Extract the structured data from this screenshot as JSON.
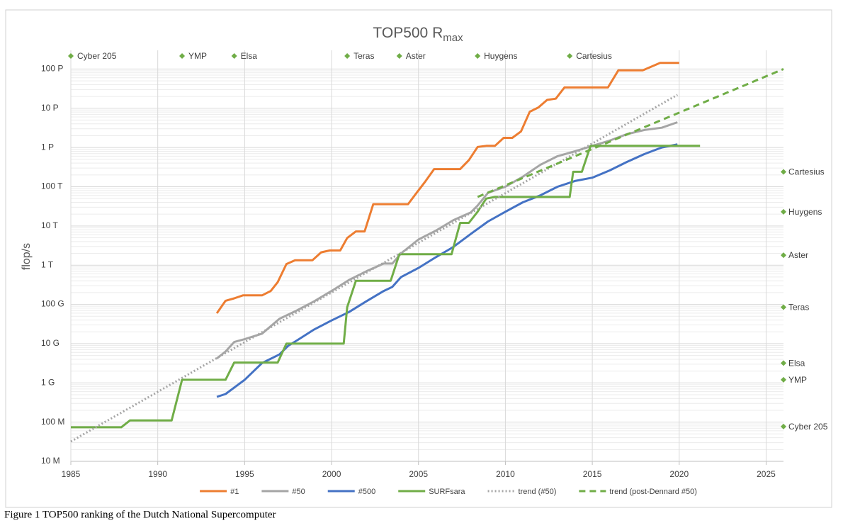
{
  "chart_data": {
    "type": "line",
    "title": "TOP500 R",
    "title_subscript": "max",
    "y_label": "flop/s",
    "caption": "Figure 1 TOP500 ranking of the Dutch National Supercomputer",
    "y_log": true,
    "grid": true,
    "legend": "bottom",
    "xlim": [
      1985,
      2026
    ],
    "xticks": [
      1985,
      1990,
      1995,
      2000,
      2005,
      2010,
      2015,
      2020,
      2025
    ],
    "ylim": [
      10000000.0,
      3e+17
    ],
    "yticks": [
      {
        "value": 10000000.0,
        "label": "10 M"
      },
      {
        "value": 100000000.0,
        "label": "100 M"
      },
      {
        "value": 1000000000.0,
        "label": "1 G"
      },
      {
        "value": 10000000000.0,
        "label": "10 G"
      },
      {
        "value": 100000000000.0,
        "label": "100 G"
      },
      {
        "value": 1000000000000.0,
        "label": "1 T"
      },
      {
        "value": 10000000000000.0,
        "label": "10 T"
      },
      {
        "value": 100000000000000.0,
        "label": "100 T"
      },
      {
        "value": 1000000000000000.0,
        "label": "1 P"
      },
      {
        "value": 1e+16,
        "label": "10 P"
      },
      {
        "value": 1e+17,
        "label": "100  P"
      }
    ],
    "series": [
      {
        "name": "#1",
        "color": "#ed7d31",
        "style": "solid",
        "x": [
          1993.4,
          1993.9,
          1994.4,
          1994.9,
          1996.0,
          1996.5,
          1996.9,
          1997.4,
          1997.9,
          1998.9,
          1999.4,
          1999.9,
          2000.5,
          2000.9,
          2001.4,
          2001.9,
          2002.4,
          2004.4,
          2004.9,
          2005.4,
          2005.9,
          2007.4,
          2007.9,
          2008.4,
          2008.9,
          2009.4,
          2009.9,
          2010.4,
          2010.9,
          2011.4,
          2011.9,
          2012.4,
          2012.9,
          2013.4,
          2014.9,
          2015.9,
          2016.5,
          2017.9,
          2018.9,
          2020.0
        ],
        "values": [
          59700000000.0,
          124000000000.0,
          143000000000.0,
          170000000000.0,
          170000000000.0,
          220000000000.0,
          368000000000.0,
          1070000000000.0,
          1340000000000.0,
          1340000000000.0,
          2120000000000.0,
          2380000000000.0,
          2380000000000.0,
          4940000000000.0,
          7230000000000.0,
          7230000000000.0,
          35900000000000.0,
          35900000000000.0,
          70700000000000.0,
          137000000000000.0,
          281000000000000.0,
          281000000000000.0,
          478000000000000.0,
          1030000000000000.0,
          1100000000000000.0,
          1100000000000000.0,
          1760000000000000.0,
          1760000000000000.0,
          2570000000000000.0,
          8160000000000000.0,
          1.05e+16,
          1.63e+16,
          1.76e+16,
          3.39e+16,
          3.39e+16,
          3.39e+16,
          9.3e+16,
          9.3e+16,
          1.436e+17,
          1.436e+17
        ]
      },
      {
        "name": "#50",
        "color": "#a5a5a5",
        "style": "solid",
        "x": [
          1993.4,
          1993.9,
          1994.4,
          1995,
          1996,
          1997,
          1998,
          1999,
          2000,
          2001,
          2002,
          2003,
          2003.5,
          2004,
          2005,
          2006,
          2007,
          2008,
          2008.4,
          2009,
          2010,
          2011,
          2012,
          2013,
          2014,
          2015,
          2016,
          2017,
          2018,
          2019,
          2019.9
        ],
        "values": [
          4200000000.0,
          6300000000.0,
          11000000000.0,
          13000000000.0,
          18000000000.0,
          43000000000.0,
          70000000000.0,
          120000000000.0,
          220000000000.0,
          420000000000.0,
          700000000000.0,
          1100000000000.0,
          1100000000000.0,
          2000000000000.0,
          4500000000000.0,
          7600000000000.0,
          14000000000000.0,
          22000000000000.0,
          33000000000000.0,
          70000000000000.0,
          100000000000000.0,
          180000000000000.0,
          360000000000000.0,
          600000000000000.0,
          800000000000000.0,
          1100000000000000.0,
          1500000000000000.0,
          2200000000000000.0,
          2800000000000000.0,
          3200000000000000.0,
          4400000000000000.0
        ]
      },
      {
        "name": "#500",
        "color": "#4472c4",
        "style": "solid",
        "x": [
          1993.4,
          1993.9,
          1995,
          1996,
          1997,
          1997.5,
          1998,
          1999,
          2000,
          2001,
          2002,
          2003,
          2003.5,
          2004,
          2005,
          2006,
          2007,
          2008,
          2009,
          2010,
          2011,
          2012,
          2013,
          2014,
          2015,
          2016,
          2017,
          2018,
          2019,
          2019.9
        ],
        "values": [
          440000000.0,
          520000000.0,
          1200000000.0,
          3200000000.0,
          5300000000.0,
          8800000000.0,
          12000000000.0,
          23000000000.0,
          39000000000.0,
          64000000000.0,
          120000000000.0,
          220000000000.0,
          280000000000.0,
          500000000000.0,
          850000000000.0,
          1600000000000.0,
          2900000000000.0,
          6200000000000.0,
          13000000000000.0,
          23000000000000.0,
          40000000000000.0,
          60000000000000.0,
          100000000000000.0,
          140000000000000.0,
          170000000000000.0,
          260000000000000.0,
          430000000000000.0,
          680000000000000.0,
          1000000000000000.0,
          1200000000000000.0
        ]
      },
      {
        "name": "SURFsara",
        "color": "#70ad47",
        "style": "solid",
        "x": [
          1985,
          1987.9,
          1988.4,
          1990.8,
          1991.4,
          1993.9,
          1994.4,
          1996.9,
          1997.4,
          2000.7,
          2000.9,
          2001.4,
          2003.4,
          2003.9,
          2006.9,
          2007.4,
          2007.9,
          2008.4,
          2008.9,
          2009.4,
          2013.7,
          2013.9,
          2014.4,
          2014.9,
          2021.2
        ],
        "values": [
          74000000.0,
          74000000.0,
          110000000.0,
          110000000.0,
          1200000000.0,
          1200000000.0,
          3300000000.0,
          3300000000.0,
          10000000000.0,
          10000000000.0,
          85000000000.0,
          400000000000.0,
          400000000000.0,
          1900000000000.0,
          1900000000000.0,
          12000000000000.0,
          12000000000000.0,
          23000000000000.0,
          50000000000000.0,
          55000000000000.0,
          55000000000000.0,
          240000000000000.0,
          240000000000000.0,
          1100000000000000.0,
          1100000000000000.0
        ]
      },
      {
        "name": "trend (#50)",
        "color": "#a5a5a5",
        "style": "dotted",
        "x": [
          1985,
          2019.9
        ],
        "values": [
          32000000.0,
          2.2e+16
        ]
      },
      {
        "name": "trend (post-Dennard #50)",
        "color": "#70ad47",
        "style": "dashed",
        "x": [
          2008.4,
          2026
        ],
        "values": [
          55000000000000.0,
          1e+17
        ]
      }
    ],
    "machine_color": "#70ad47",
    "machines": [
      {
        "name": "Cyber 205",
        "year": 1985,
        "rmax": 77000000.0
      },
      {
        "name": "YMP",
        "year": 1991.4,
        "rmax": 1200000000.0
      },
      {
        "name": "Elsa",
        "year": 1994.4,
        "rmax": 3200000000.0
      },
      {
        "name": "Teras",
        "year": 2000.9,
        "rmax": 85000000000.0
      },
      {
        "name": "Aster",
        "year": 2003.9,
        "rmax": 1800000000000.0
      },
      {
        "name": "Huygens",
        "year": 2008.4,
        "rmax": 23000000000000.0
      },
      {
        "name": "Cartesius",
        "year": 2013.7,
        "rmax": 240000000000000.0
      }
    ]
  }
}
